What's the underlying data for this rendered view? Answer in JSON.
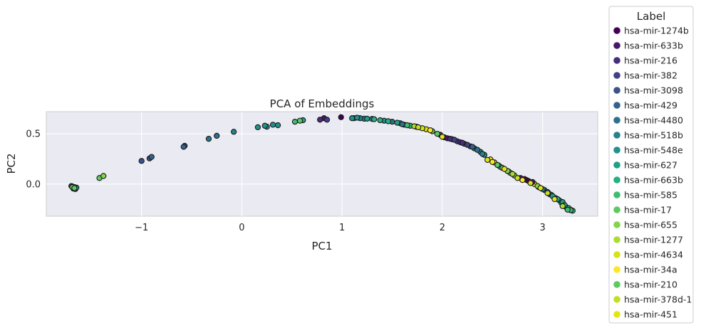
{
  "chart_data": {
    "type": "scatter",
    "title": "PCA of Embeddings",
    "xlabel": "PC1",
    "ylabel": "PC2",
    "xlim": [
      -1.95,
      3.55
    ],
    "ylim": [
      -0.32,
      0.72
    ],
    "x_ticks": [
      -1,
      0,
      1,
      2,
      3
    ],
    "y_ticks": [
      0.0,
      0.5
    ],
    "x_tick_labels": [
      "−1",
      "0",
      "1",
      "2",
      "3"
    ],
    "y_tick_labels": [
      "0.0",
      "0.5"
    ],
    "grid": true,
    "legend_title": "Label",
    "legend_placement": "outside-right",
    "series": [
      {
        "name": "hsa-mir-1274b",
        "color": "#440154",
        "points": [
          [
            0.99,
            0.665
          ],
          [
            2.82,
            0.05
          ],
          [
            2.86,
            0.03
          ]
        ]
      },
      {
        "name": "hsa-mir-633b",
        "color": "#48186a",
        "points": [
          [
            0.82,
            0.655
          ],
          [
            2.05,
            0.455
          ],
          [
            2.9,
            0.02
          ]
        ]
      },
      {
        "name": "hsa-mir-216",
        "color": "#472d7b",
        "points": [
          [
            0.78,
            0.64
          ],
          [
            2.08,
            0.45
          ],
          [
            2.2,
            0.41
          ]
        ]
      },
      {
        "name": "hsa-mir-382",
        "color": "#424086",
        "points": [
          [
            0.85,
            0.64
          ],
          [
            2.12,
            0.44
          ],
          [
            2.25,
            0.39
          ]
        ]
      },
      {
        "name": "hsa-mir-3098",
        "color": "#3b528b",
        "points": [
          [
            -1.0,
            0.23
          ],
          [
            -0.92,
            0.255
          ],
          [
            -0.57,
            0.38
          ]
        ]
      },
      {
        "name": "hsa-mir-429",
        "color": "#33638d",
        "points": [
          [
            -0.9,
            0.27
          ],
          [
            -0.58,
            0.37
          ],
          [
            2.3,
            0.37
          ]
        ]
      },
      {
        "name": "hsa-mir-4480",
        "color": "#2c728e",
        "points": [
          [
            -0.33,
            0.45
          ],
          [
            -0.25,
            0.48
          ],
          [
            1.6,
            0.595
          ],
          [
            2.35,
            0.34
          ]
        ]
      },
      {
        "name": "hsa-mir-518b",
        "color": "#26828e",
        "points": [
          [
            -0.08,
            0.52
          ],
          [
            0.25,
            0.57
          ],
          [
            1.18,
            0.655
          ],
          [
            2.4,
            0.3
          ]
        ]
      },
      {
        "name": "hsa-mir-548e",
        "color": "#21918c",
        "points": [
          [
            0.16,
            0.565
          ],
          [
            0.23,
            0.58
          ],
          [
            0.31,
            0.59
          ],
          [
            0.36,
            0.585
          ],
          [
            1.1,
            0.655
          ],
          [
            1.15,
            0.66
          ],
          [
            3.0,
            -0.05
          ],
          [
            3.05,
            -0.08
          ]
        ]
      },
      {
        "name": "hsa-mir-627",
        "color": "#1fa088",
        "points": [
          [
            0.61,
            0.635
          ],
          [
            1.25,
            0.65
          ],
          [
            1.55,
            0.61
          ],
          [
            3.1,
            -0.12
          ],
          [
            3.15,
            -0.15
          ],
          [
            3.2,
            -0.18
          ]
        ]
      },
      {
        "name": "hsa-mir-663b",
        "color": "#28ae80",
        "points": [
          [
            1.32,
            0.645
          ],
          [
            1.38,
            0.635
          ],
          [
            1.46,
            0.625
          ],
          [
            3.22,
            -0.21
          ],
          [
            3.26,
            -0.24
          ]
        ]
      },
      {
        "name": "hsa-mir-585",
        "color": "#3fbc73",
        "points": [
          [
            0.53,
            0.62
          ],
          [
            1.65,
            0.585
          ],
          [
            3.28,
            -0.26
          ],
          [
            3.25,
            -0.255
          ]
        ]
      },
      {
        "name": "hsa-mir-17",
        "color": "#5ec962",
        "points": [
          [
            -1.42,
            0.06
          ],
          [
            0.58,
            0.63
          ],
          [
            2.55,
            0.19
          ]
        ]
      },
      {
        "name": "hsa-mir-655",
        "color": "#84d44b",
        "points": [
          [
            -1.38,
            0.08
          ],
          [
            2.65,
            0.13
          ],
          [
            2.95,
            -0.02
          ]
        ]
      },
      {
        "name": "hsa-mir-1277",
        "color": "#addc30",
        "points": [
          [
            1.72,
            0.575
          ],
          [
            2.7,
            0.1
          ],
          [
            3.2,
            -0.22
          ]
        ]
      },
      {
        "name": "hsa-mir-4634",
        "color": "#d8e219",
        "points": [
          [
            1.8,
            0.555
          ],
          [
            2.45,
            0.24
          ],
          [
            2.88,
            0.01
          ]
        ]
      },
      {
        "name": "hsa-mir-34a",
        "color": "#fde725",
        "points": [
          [
            1.88,
            0.535
          ],
          [
            2.5,
            0.22
          ],
          [
            2.8,
            0.04
          ]
        ]
      },
      {
        "name": "hsa-mir-210",
        "color": "#5ec962",
        "points": [
          [
            -1.69,
            -0.03
          ],
          [
            -1.67,
            -0.04
          ],
          [
            1.95,
            0.5
          ],
          [
            2.6,
            0.16
          ]
        ]
      },
      {
        "name": "hsa-mir-378d-1",
        "color": "#c2df23",
        "points": [
          [
            1.76,
            0.565
          ],
          [
            2.75,
            0.06
          ],
          [
            3.05,
            -0.09
          ]
        ]
      },
      {
        "name": "hsa-mir-451",
        "color": "#e4e419",
        "points": [
          [
            2.0,
            0.47
          ],
          [
            2.62,
            0.15
          ],
          [
            2.98,
            -0.04
          ],
          [
            3.12,
            -0.15
          ]
        ]
      }
    ],
    "curve_points_hint": "dense",
    "extra_points": [
      {
        "x": -1.7,
        "y": -0.02,
        "color": "#2c728e"
      },
      {
        "x": -1.68,
        "y": -0.045,
        "color": "#3b528b"
      },
      {
        "x": -1.66,
        "y": -0.05,
        "color": "#33638d"
      },
      {
        "x": -1.65,
        "y": -0.035,
        "color": "#21918c"
      },
      {
        "x": -1.69,
        "y": -0.025,
        "color": "#28ae80"
      },
      {
        "x": -1.67,
        "y": -0.03,
        "color": "#84d44b"
      },
      {
        "x": 1.12,
        "y": 0.655,
        "color": "#21918c"
      },
      {
        "x": 1.22,
        "y": 0.65,
        "color": "#26828e"
      },
      {
        "x": 1.3,
        "y": 0.648,
        "color": "#26828e"
      },
      {
        "x": 1.42,
        "y": 0.63,
        "color": "#21918c"
      },
      {
        "x": 1.5,
        "y": 0.62,
        "color": "#2c728e"
      },
      {
        "x": 1.58,
        "y": 0.605,
        "color": "#28ae80"
      },
      {
        "x": 1.62,
        "y": 0.59,
        "color": "#21918c"
      },
      {
        "x": 1.68,
        "y": 0.58,
        "color": "#3fbc73"
      },
      {
        "x": 1.74,
        "y": 0.57,
        "color": "#84d44b"
      },
      {
        "x": 1.84,
        "y": 0.545,
        "color": "#d8e219"
      },
      {
        "x": 1.9,
        "y": 0.525,
        "color": "#5ec962"
      },
      {
        "x": 1.98,
        "y": 0.49,
        "color": "#472d7b"
      },
      {
        "x": 2.02,
        "y": 0.465,
        "color": "#48186a"
      },
      {
        "x": 2.1,
        "y": 0.445,
        "color": "#440154"
      },
      {
        "x": 2.15,
        "y": 0.425,
        "color": "#424086"
      },
      {
        "x": 2.18,
        "y": 0.415,
        "color": "#472d7b"
      },
      {
        "x": 2.22,
        "y": 0.4,
        "color": "#33638d"
      },
      {
        "x": 2.28,
        "y": 0.375,
        "color": "#2c728e"
      },
      {
        "x": 2.32,
        "y": 0.355,
        "color": "#26828e"
      },
      {
        "x": 2.38,
        "y": 0.32,
        "color": "#21918c"
      },
      {
        "x": 2.42,
        "y": 0.29,
        "color": "#1fa088"
      },
      {
        "x": 2.48,
        "y": 0.245,
        "color": "#fde725"
      },
      {
        "x": 2.52,
        "y": 0.215,
        "color": "#d8e219"
      },
      {
        "x": 2.56,
        "y": 0.185,
        "color": "#5ec962"
      },
      {
        "x": 2.58,
        "y": 0.17,
        "color": "#28ae80"
      },
      {
        "x": 2.66,
        "y": 0.125,
        "color": "#3fbc73"
      },
      {
        "x": 2.68,
        "y": 0.11,
        "color": "#5ec962"
      },
      {
        "x": 2.72,
        "y": 0.085,
        "color": "#84d44b"
      },
      {
        "x": 2.78,
        "y": 0.06,
        "color": "#48186a"
      },
      {
        "x": 2.84,
        "y": 0.04,
        "color": "#440154"
      },
      {
        "x": 2.92,
        "y": 0.0,
        "color": "#fde725"
      },
      {
        "x": 2.96,
        "y": -0.03,
        "color": "#21918c"
      },
      {
        "x": 3.02,
        "y": -0.06,
        "color": "#26828e"
      },
      {
        "x": 3.07,
        "y": -0.1,
        "color": "#1fa088"
      },
      {
        "x": 3.09,
        "y": -0.11,
        "color": "#21918c"
      },
      {
        "x": 3.13,
        "y": -0.14,
        "color": "#2c728e"
      },
      {
        "x": 3.17,
        "y": -0.165,
        "color": "#28ae80"
      },
      {
        "x": 3.19,
        "y": -0.19,
        "color": "#1fa088"
      },
      {
        "x": 3.21,
        "y": -0.2,
        "color": "#3fbc73"
      },
      {
        "x": 3.23,
        "y": -0.225,
        "color": "#21918c"
      },
      {
        "x": 3.24,
        "y": -0.235,
        "color": "#28ae80"
      },
      {
        "x": 3.27,
        "y": -0.25,
        "color": "#3fbc73"
      },
      {
        "x": 3.29,
        "y": -0.262,
        "color": "#1fa088"
      },
      {
        "x": 3.3,
        "y": -0.265,
        "color": "#28ae80"
      }
    ]
  }
}
